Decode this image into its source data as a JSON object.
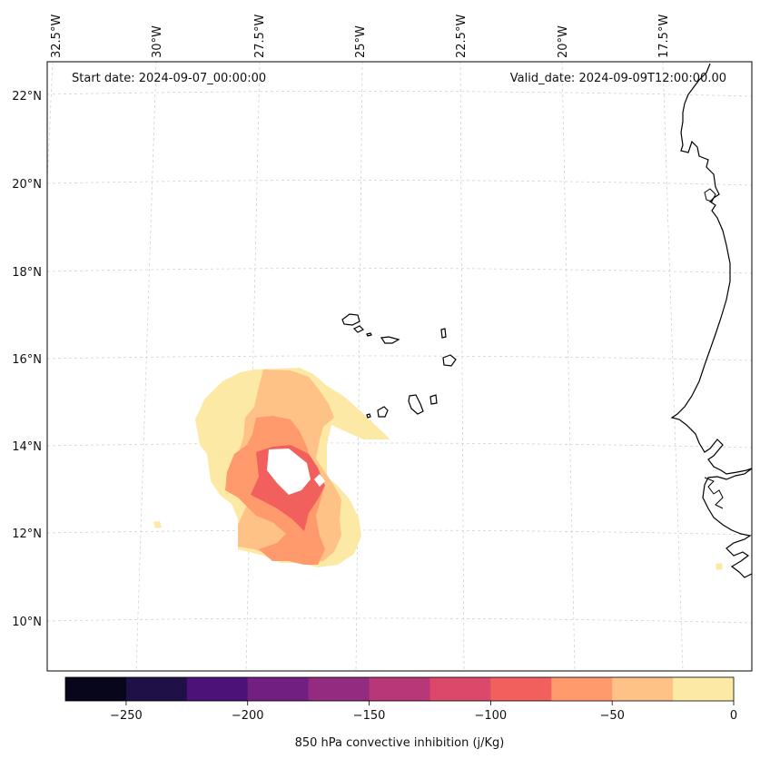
{
  "header": {
    "start_date": "Start date: 2024-09-07_00:00:00",
    "valid_date": "Valid_date: 2024-09-09T12:00:00.00"
  },
  "lon_labels": [
    "32.5°W",
    "30°W",
    "27.5°W",
    "25°W",
    "22.5°W",
    "20°W",
    "17.5°W"
  ],
  "lat_labels": [
    "22°N",
    "20°N",
    "18°N",
    "16°N",
    "14°N",
    "12°N",
    "10°N"
  ],
  "colorbar": {
    "label": "850 hPa convective inhibition (j/Kg)",
    "tick_labels": [
      "−250",
      "−200",
      "−150",
      "−100",
      "−50",
      "0"
    ],
    "levels": [
      -275,
      -250,
      -225,
      -200,
      -175,
      -150,
      -125,
      -100,
      -75,
      -50,
      -25,
      0
    ],
    "colors": [
      "#07061a",
      "#1f1147",
      "#4c1277",
      "#711f81",
      "#932b80",
      "#b73779",
      "#dc486a",
      "#f1605d",
      "#fe9a6b",
      "#fec287",
      "#fde9a6"
    ]
  },
  "chart_data": {
    "type": "heatmap",
    "title": "850 hPa convective inhibition",
    "units": "j/Kg",
    "start_date": "2024-09-07_00:00:00",
    "valid_date": "2024-09-09T12:00:00.00",
    "lon_range": [
      -33,
      -16
    ],
    "lat_range": [
      9,
      22.5
    ],
    "contour_levels": [
      -275,
      -250,
      -225,
      -200,
      -175,
      -150,
      -125,
      -100,
      -75,
      -50,
      -25,
      0
    ],
    "features": [
      {
        "region": "outer ring (west of Cape Verde)",
        "value_range": [
          -25,
          0
        ]
      },
      {
        "region": "middle ring",
        "value_range": [
          -50,
          -25
        ]
      },
      {
        "region": "inner ring",
        "value_range": [
          -75,
          -50
        ]
      },
      {
        "region": "core band around 13°N, 27°W",
        "value_range": [
          -100,
          -75
        ]
      }
    ],
    "colormap": "magma"
  }
}
